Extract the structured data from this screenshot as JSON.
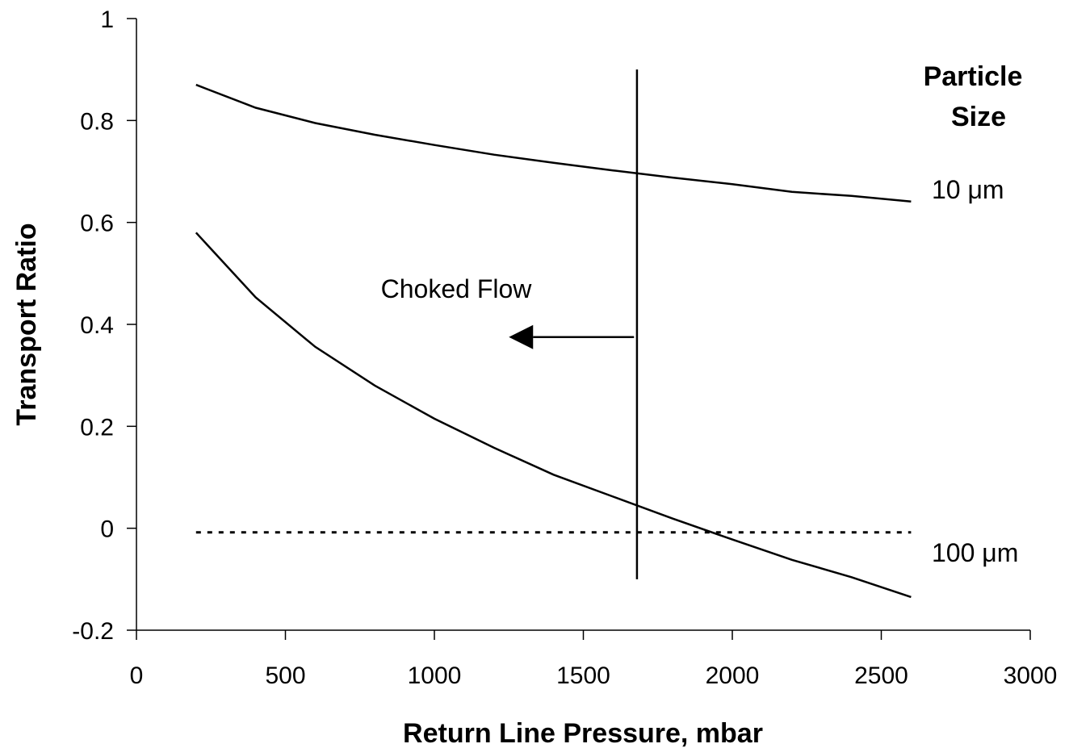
{
  "chart_data": {
    "type": "line",
    "title": "",
    "xlabel": "Return Line Pressure, mbar",
    "ylabel": "Transport Ratio",
    "xlim": [
      0,
      3000
    ],
    "ylim": [
      -0.2,
      1
    ],
    "x_ticks": [
      0,
      500,
      1000,
      1500,
      2000,
      2500,
      3000
    ],
    "x_tick_labels": [
      "0",
      "500",
      "1000",
      "1500",
      "2000",
      "2500",
      "3000"
    ],
    "y_ticks": [
      -0.2,
      0,
      0.2,
      0.4,
      0.6,
      0.8,
      1
    ],
    "y_tick_labels": [
      "-0.2",
      "0",
      "0.2",
      "0.4",
      "0.6",
      "0.8",
      "1"
    ],
    "grid": false,
    "legend": {
      "title_lines": [
        "Particle",
        "Size"
      ],
      "placement": "right"
    },
    "series": [
      {
        "name": "10 μm",
        "x": [
          200,
          400,
          600,
          800,
          1000,
          1200,
          1400,
          1600,
          1800,
          2000,
          2200,
          2400,
          2600
        ],
        "y": [
          0.87,
          0.825,
          0.795,
          0.772,
          0.752,
          0.733,
          0.717,
          0.702,
          0.688,
          0.675,
          0.66,
          0.652,
          0.641
        ],
        "color": "#000000"
      },
      {
        "name": "100 μm",
        "x": [
          200,
          400,
          600,
          800,
          1000,
          1200,
          1400,
          1600,
          1800,
          2000,
          2200,
          2400,
          2600
        ],
        "y": [
          0.58,
          0.453,
          0.356,
          0.28,
          0.215,
          0.158,
          0.105,
          0.062,
          0.019,
          -0.022,
          -0.062,
          -0.096,
          -0.135
        ],
        "color": "#000000"
      }
    ],
    "reference_line": {
      "style": "dotted",
      "y": -0.008,
      "x_range": [
        200,
        2600
      ]
    },
    "vertical_line": {
      "x": 1680,
      "y_range": [
        -0.1,
        0.9
      ]
    },
    "annotation": {
      "text": "Choked Flow",
      "arrow_direction": "left",
      "text_position": [
        1270,
        0.47
      ],
      "arrow_from": [
        1670,
        0.375
      ],
      "arrow_to": [
        1250,
        0.375
      ]
    }
  }
}
